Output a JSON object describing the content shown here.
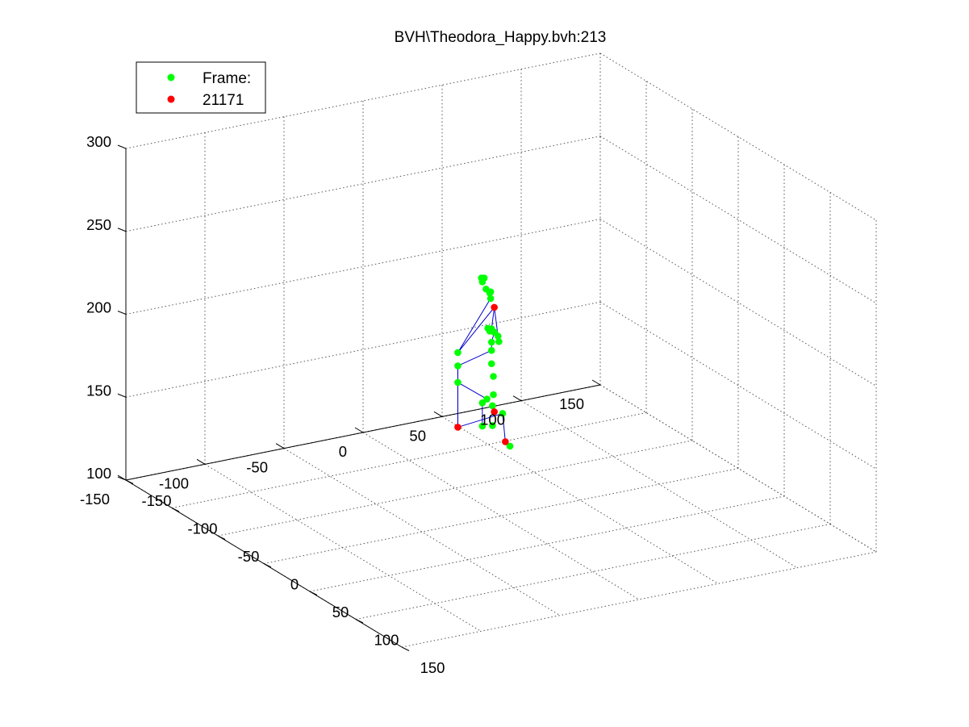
{
  "chart_data": {
    "type": "scatter",
    "projection": "3d",
    "title": "BVH\\Theodora_Happy.bvh:213",
    "xlabel": "",
    "ylabel": "",
    "zlabel": "",
    "xlim": [
      -150,
      150
    ],
    "ylim": [
      -150,
      150
    ],
    "zlim": [
      100,
      300
    ],
    "grid": true,
    "legend": {
      "placement": "top-left",
      "entries": [
        "Frame:",
        "21171"
      ]
    },
    "ticks": {
      "x": [
        "-150",
        "-100",
        "-50",
        "0",
        "50",
        "100",
        "150"
      ],
      "y": [
        "-150",
        "-100",
        "-50",
        "0",
        "50",
        "100",
        "150"
      ],
      "z": [
        "100",
        "150",
        "200",
        "250",
        "300"
      ]
    },
    "colors": {
      "marker": "#00ff00",
      "marker_alt": "#ff0000",
      "bone": "#0000cc",
      "grid": "#555555",
      "axis": "#000000"
    },
    "series": [
      {
        "name": "Frame:",
        "color": "#00ff00",
        "points": [
          [
            -4,
            -25,
            202
          ],
          [
            0,
            -6,
            201
          ],
          [
            0,
            -6,
            193
          ],
          [
            2,
            -6,
            186
          ],
          [
            2,
            -6,
            175
          ],
          [
            1,
            -6,
            168
          ],
          [
            1,
            -6,
            156
          ],
          [
            -5,
            -6,
            170
          ],
          [
            -10,
            -6,
            166
          ],
          [
            -10,
            -6,
            152
          ],
          [
            12,
            -6,
            167
          ],
          [
            20,
            -6,
            150
          ],
          [
            0,
            -6,
            214
          ],
          [
            -2,
            -6,
            212
          ],
          [
            3,
            -6,
            213
          ],
          [
            7,
            -6,
            212
          ],
          [
            -4,
            -6,
            213
          ],
          [
            0,
            -6,
            206
          ],
          [
            8,
            -6,
            209
          ],
          [
            -1,
            -6,
            232
          ],
          [
            -6,
            -6,
            236
          ],
          [
            -8,
            -6,
            242
          ],
          [
            -10,
            -6,
            239
          ],
          [
            -11,
            -6,
            241
          ],
          [
            -2,
            -6,
            235
          ],
          [
            -1,
            -6,
            236
          ],
          [
            -4,
            -25,
            194
          ],
          [
            -4,
            -25,
            184
          ]
        ]
      },
      {
        "name": "21171",
        "color": "#ff0000",
        "points": [
          [
            3,
            -6,
            228
          ],
          [
            3,
            -6,
            165
          ],
          [
            -4,
            -25,
            157
          ],
          [
            15,
            -6,
            151
          ]
        ]
      }
    ],
    "bones": [
      [
        [
          -4,
          -25,
          157
        ],
        [
          -4,
          -25,
          184
        ]
      ],
      [
        [
          -4,
          -25,
          184
        ],
        [
          -4,
          -25,
          194
        ]
      ],
      [
        [
          -4,
          -25,
          184
        ],
        [
          -5,
          -6,
          170
        ]
      ],
      [
        [
          -5,
          -6,
          170
        ],
        [
          -10,
          -6,
          166
        ]
      ],
      [
        [
          -10,
          -6,
          166
        ],
        [
          -10,
          -6,
          152
        ]
      ],
      [
        [
          -4,
          -25,
          157
        ],
        [
          12,
          -6,
          167
        ]
      ],
      [
        [
          12,
          -6,
          167
        ],
        [
          15,
          -6,
          151
        ]
      ],
      [
        [
          15,
          -6,
          151
        ],
        [
          20,
          -6,
          150
        ]
      ],
      [
        [
          -4,
          -25,
          157
        ],
        [
          -4,
          -25,
          194
        ]
      ],
      [
        [
          -4,
          -25,
          194
        ],
        [
          0,
          -6,
          201
        ]
      ],
      [
        [
          0,
          -6,
          201
        ],
        [
          0,
          -6,
          206
        ]
      ],
      [
        [
          0,
          -6,
          206
        ],
        [
          3,
          -6,
          213
        ]
      ],
      [
        [
          0,
          -6,
          213
        ],
        [
          0,
          -6,
          214
        ]
      ],
      [
        [
          0,
          -6,
          214
        ],
        [
          3,
          -6,
          228
        ]
      ],
      [
        [
          3,
          -6,
          228
        ],
        [
          -4,
          -25,
          202
        ]
      ],
      [
        [
          -4,
          -25,
          202
        ],
        [
          -1,
          -6,
          232
        ]
      ],
      [
        [
          -1,
          -6,
          232
        ],
        [
          -2,
          -6,
          235
        ]
      ],
      [
        [
          -1,
          -6,
          232
        ],
        [
          -4,
          -6,
          236
        ]
      ],
      [
        [
          -1,
          -6,
          232
        ],
        [
          -6,
          -6,
          236
        ]
      ],
      [
        [
          3,
          -6,
          228
        ],
        [
          7,
          -6,
          212
        ]
      ],
      [
        [
          7,
          -6,
          212
        ],
        [
          8,
          -6,
          209
        ]
      ]
    ]
  }
}
